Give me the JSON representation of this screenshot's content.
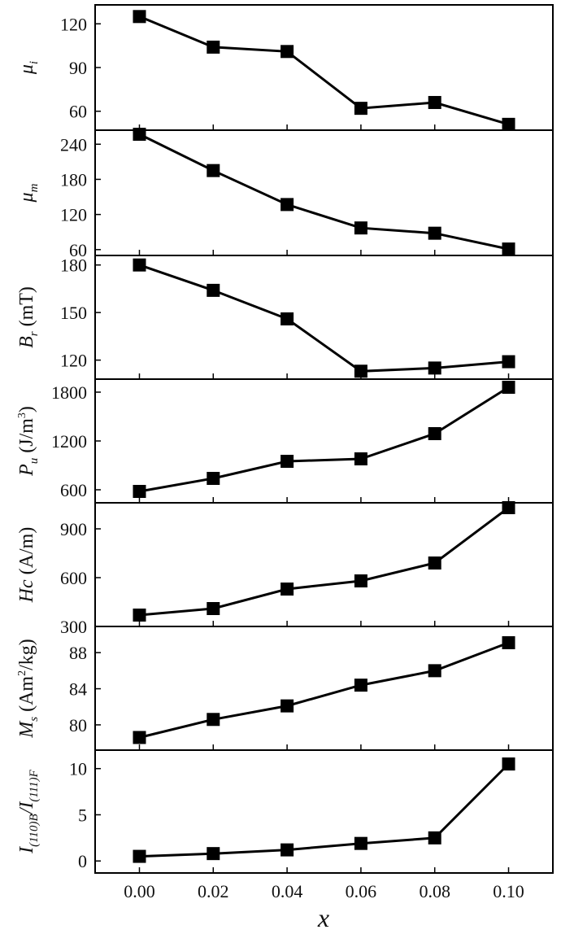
{
  "chart_data": {
    "type": "line",
    "layout": "stacked-panels",
    "x": [
      0.0,
      0.02,
      0.04,
      0.06,
      0.08,
      0.1
    ],
    "x_tick_labels": [
      "0.00",
      "0.02",
      "0.04",
      "0.06",
      "0.08",
      "0.10"
    ],
    "xlim": [
      -0.012,
      0.112
    ],
    "xlabel": "x",
    "marker": "square",
    "line_color": "#000000",
    "panels": [
      {
        "ylabel": {
          "main": "μ",
          "sub": "i",
          "sub_style": "italic"
        },
        "values": [
          125,
          104,
          101,
          62,
          66,
          51
        ],
        "ylim": [
          47,
          133
        ],
        "yticks": [
          60,
          90,
          120
        ]
      },
      {
        "ylabel": {
          "main": "μ",
          "sub": "m",
          "sub_style": "italic"
        },
        "values": [
          257,
          195,
          137,
          97,
          88,
          61
        ],
        "ylim": [
          50,
          264
        ],
        "yticks": [
          60,
          120,
          180,
          240
        ]
      },
      {
        "ylabel": {
          "main": "B",
          "sub": "r",
          "sub_style": "italic",
          "unit": " (mT)"
        },
        "values": [
          180,
          164,
          146,
          113,
          115,
          119
        ],
        "ylim": [
          108,
          186
        ],
        "yticks": [
          120,
          150,
          180
        ]
      },
      {
        "ylabel": {
          "main": "P",
          "sub": "u",
          "sub_style": "italic",
          "unit": " (J/m",
          "unit_sup": "3",
          "unit_end": ")"
        },
        "values": [
          580,
          740,
          950,
          980,
          1290,
          1860
        ],
        "ylim": [
          440,
          1960
        ],
        "yticks": [
          600,
          1200,
          1800
        ]
      },
      {
        "ylabel": {
          "main": "Hc",
          "unit": " (A/m)"
        },
        "values": [
          370,
          410,
          530,
          580,
          690,
          1030
        ],
        "ylim": [
          300,
          1060
        ],
        "yticks": [
          300,
          600,
          900
        ]
      },
      {
        "ylabel": {
          "main": "M",
          "sub": "s",
          "sub_style": "italic",
          "unit": " (Am",
          "unit_sup": "2",
          "unit_end": "/kg)"
        },
        "values": [
          78.6,
          80.6,
          82.1,
          84.4,
          86.0,
          89.1
        ],
        "ylim": [
          77.2,
          90.9
        ],
        "yticks": [
          80,
          84,
          88
        ]
      },
      {
        "ylabel": {
          "main": "I",
          "sub": "(110)B",
          "sub_style": "italic",
          "mid": "/I",
          "sub2": "(111)F"
        },
        "values": [
          0.5,
          0.8,
          1.2,
          1.9,
          2.5,
          10.5
        ],
        "ylim": [
          -1.3,
          12.0
        ],
        "yticks": [
          0,
          5,
          10
        ]
      }
    ]
  }
}
